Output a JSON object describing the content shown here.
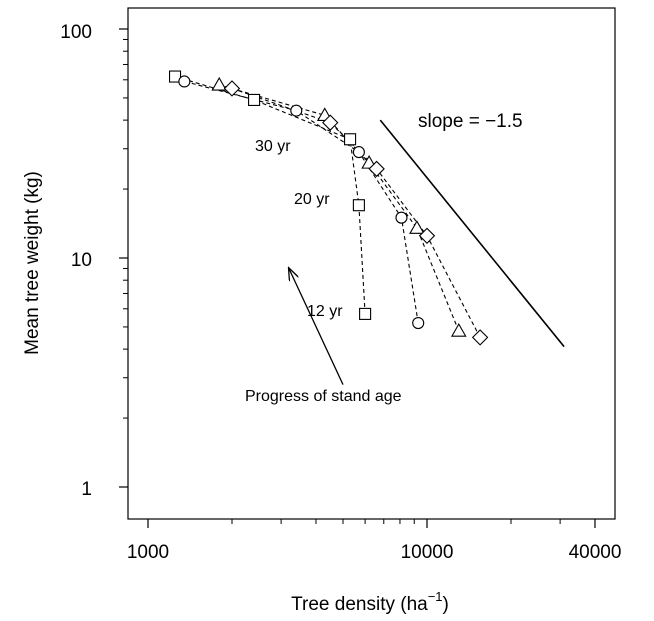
{
  "chart_data": {
    "type": "scatter",
    "title": "",
    "xlabel_main": "Tree density (ha",
    "xlabel_sup": "−1",
    "xlabel_close": ")",
    "ylabel": "Mean tree weight (kg)",
    "x_scale": "log",
    "y_scale": "log",
    "xlim": [
      1000,
      40000
    ],
    "ylim": [
      1,
      100
    ],
    "x_tick_labels": [
      "1000",
      "10000",
      "40000"
    ],
    "y_tick_labels": [
      "100",
      "10",
      "1"
    ],
    "x_major_ticks": [
      1000,
      10000,
      40000
    ],
    "x_minor_ticks": [
      2000,
      3000,
      4000,
      5000,
      6000,
      7000,
      8000,
      9000,
      20000,
      30000
    ],
    "y_major_ticks": [
      1,
      10,
      100
    ],
    "y_minor_ticks": [
      2,
      3,
      4,
      5,
      6,
      7,
      8,
      9,
      20,
      30,
      40,
      50,
      60,
      70,
      80,
      90
    ],
    "grid": false,
    "series": [
      {
        "marker": "square",
        "points": [
          [
            6000,
            5.7
          ],
          [
            5700,
            17
          ],
          [
            5300,
            33
          ],
          [
            2400,
            49
          ],
          [
            1250,
            62
          ]
        ]
      },
      {
        "marker": "circle",
        "points": [
          [
            9300,
            5.2
          ],
          [
            8100,
            15
          ],
          [
            5700,
            29
          ],
          [
            3400,
            44
          ],
          [
            1350,
            59
          ]
        ]
      },
      {
        "marker": "triangle",
        "points": [
          [
            13000,
            4.8
          ],
          [
            9200,
            13.5
          ],
          [
            6200,
            26
          ],
          [
            4300,
            42
          ],
          [
            1800,
            57
          ]
        ]
      },
      {
        "marker": "diamond",
        "points": [
          [
            15500,
            4.5
          ],
          [
            10000,
            12.5
          ],
          [
            6600,
            24.5
          ],
          [
            4500,
            39
          ],
          [
            2000,
            55
          ]
        ]
      }
    ],
    "reference_line": {
      "label": "slope = −1.5",
      "slope": -1.5,
      "x": [
        6800,
        31000
      ],
      "y": [
        40,
        4.1
      ]
    },
    "arrow": {
      "label": "Progress of stand age",
      "from": [
        5000,
        2.8
      ],
      "to": [
        3200,
        9
      ]
    },
    "age_labels": [
      {
        "text": "12 yr",
        "x": 5300,
        "y": 5.9
      },
      {
        "text": "20 yr",
        "x": 4800,
        "y": 17.3
      },
      {
        "text": "30 yr",
        "x": 3900,
        "y": 30.8
      }
    ]
  }
}
